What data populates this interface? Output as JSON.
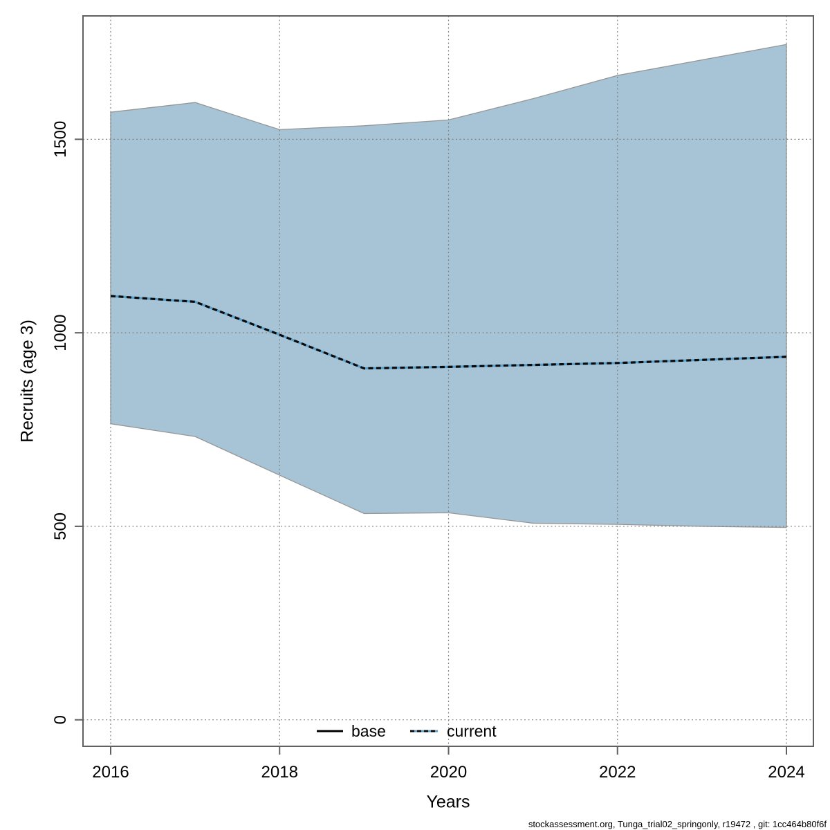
{
  "figure": {
    "y_axis_label": "Recruits (age 3)",
    "x_axis_label": "Years",
    "caption": "stockassessment.org, Tunga_trial02_springonly, r19472 , git: 1cc464b80f6f",
    "legend": [
      {
        "label": "base",
        "style": "solid"
      },
      {
        "label": "current",
        "style": "dotted"
      }
    ]
  },
  "chart_data": {
    "type": "area",
    "title": "",
    "xlabel": "Years",
    "ylabel": "Recruits (age 3)",
    "x": [
      2016,
      2017,
      2018,
      2019,
      2020,
      2021,
      2022,
      2023,
      2024
    ],
    "series": [
      {
        "name": "current",
        "style": "dotted",
        "values": [
          1095,
          1080,
          995,
          908,
          912,
          917,
          922,
          930,
          938
        ]
      }
    ],
    "band": {
      "name": "confidence-interval",
      "hi": [
        1570,
        1595,
        1525,
        1535,
        1550,
        1605,
        1665,
        1705,
        1745
      ],
      "lo": [
        765,
        732,
        632,
        533,
        535,
        508,
        505,
        500,
        497
      ]
    },
    "x_ticks": [
      2016,
      2018,
      2020,
      2022,
      2024
    ],
    "y_ticks": [
      0,
      500,
      1000,
      1500
    ],
    "xlim": [
      2015.67,
      2024.33
    ],
    "ylim": [
      -68,
      1819
    ],
    "grid": true,
    "legend_position": "bottom-center",
    "colors": {
      "band_fill": "#a6c4d6",
      "band_edge": "#969696",
      "current_under": "#57a0cc",
      "current_dash": "#0a0a0a",
      "base_line": "#000000",
      "grid": "#808080",
      "box": "#606060",
      "text": "#000000"
    }
  }
}
